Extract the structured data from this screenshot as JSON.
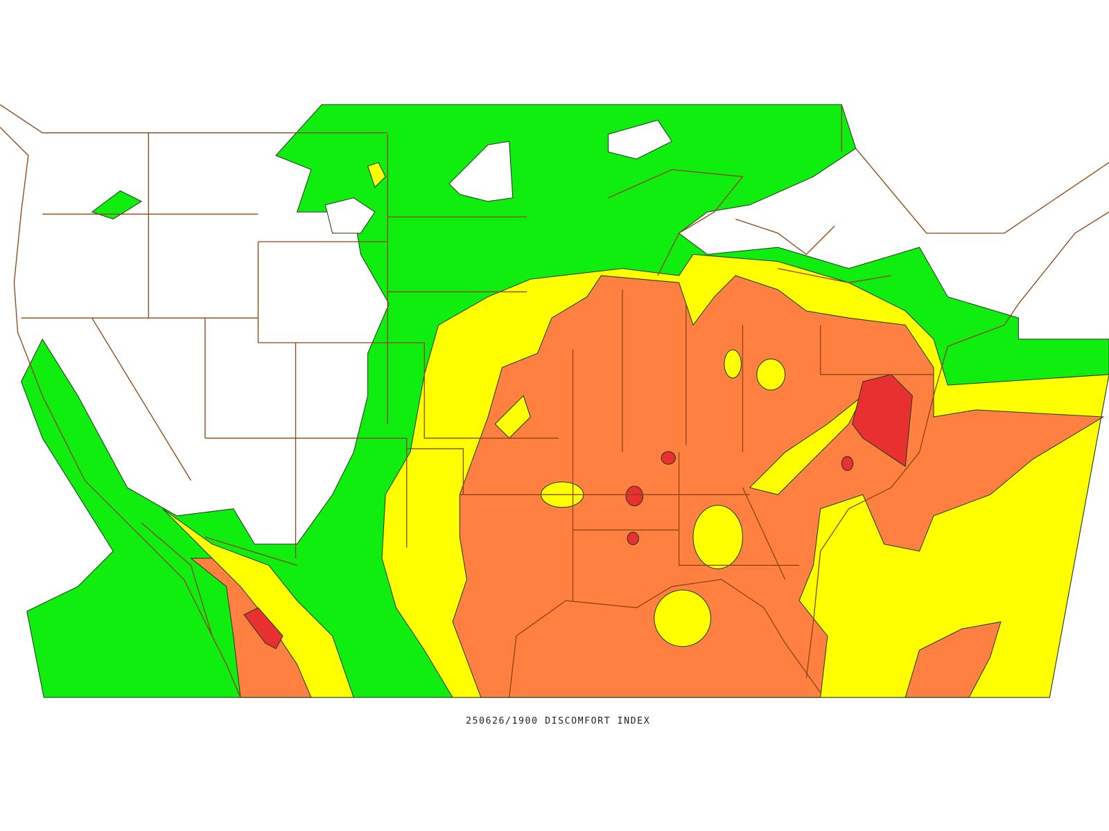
{
  "caption": "250626/1900 DISCOMFORT INDEX"
}
